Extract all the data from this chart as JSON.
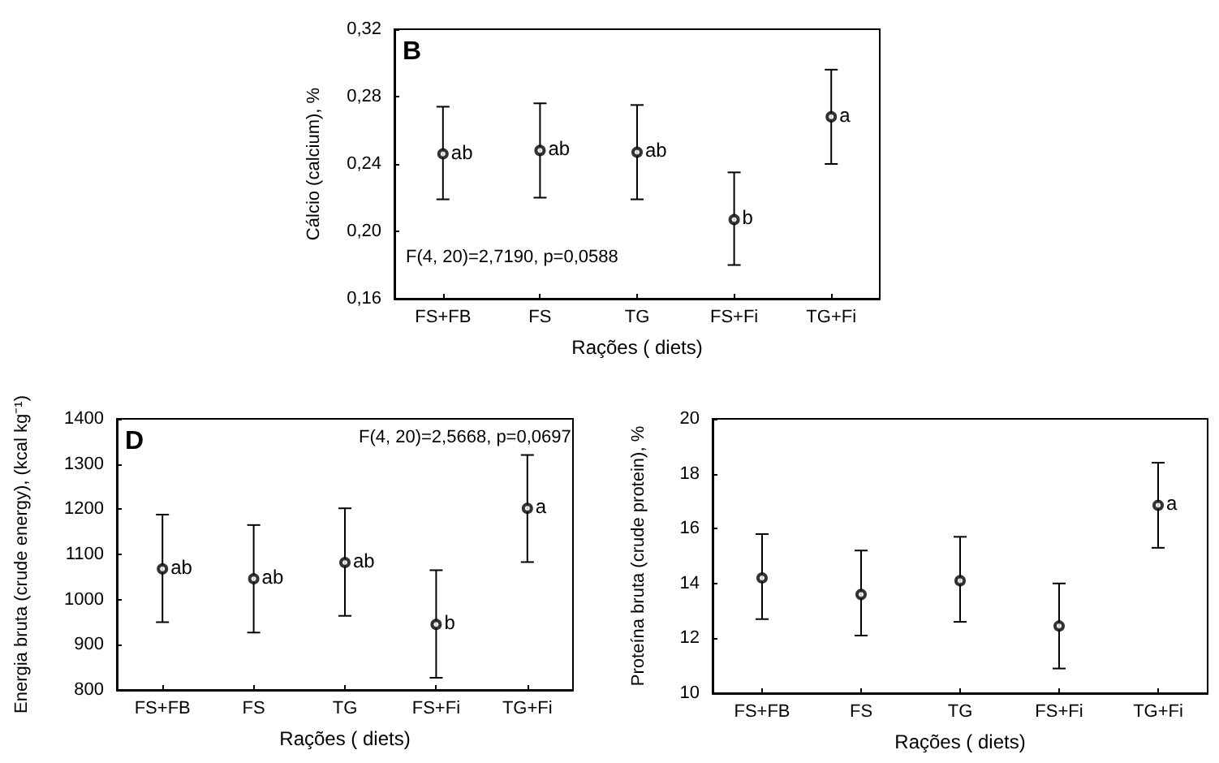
{
  "chart_data": [
    {
      "type": "scatter",
      "title": "B",
      "xlabel": "Rações ( diets)",
      "ylabel": "Cálcio (calcium), %",
      "marker": "circle",
      "categories": [
        "FS+FB",
        "FS",
        "TG",
        "FS+Fi",
        "TG+Fi"
      ],
      "series": [
        {
          "color": "#000000",
          "values": [
            0.246,
            0.248,
            0.247,
            0.207,
            0.268
          ],
          "errors": [
            [
              0.219,
              0.274
            ],
            [
              0.22,
              0.276
            ],
            [
              0.219,
              0.275
            ],
            [
              0.18,
              0.235
            ],
            [
              0.24,
              0.296
            ]
          ]
        }
      ],
      "ylim": [
        0.16,
        0.32
      ],
      "yticks": [
        {
          "value": 0.16,
          "label": "0,16"
        },
        {
          "value": 0.2,
          "label": "0,20"
        },
        {
          "value": 0.24,
          "label": "0,24"
        },
        {
          "value": 0.28,
          "label": "0,28"
        },
        {
          "value": 0.32,
          "label": "0,32"
        }
      ],
      "annotations": [
        "F(4, 20)=2,7190, p=0,0588",
        {
          "text": "ab",
          "x": "FS+FB",
          "y": 0.246
        },
        {
          "text": "ab",
          "x": "FS",
          "y": 0.248
        },
        {
          "text": "ab",
          "x": "TG",
          "y": 0.247
        },
        {
          "text": "b",
          "x": "FS+Fi",
          "y": 0.207
        },
        {
          "text": "a",
          "x": "TG+Fi",
          "y": 0.268
        }
      ]
    },
    {
      "type": "scatter",
      "title": "D",
      "xlabel": "Rações ( diets)",
      "ylabel": "Energia bruta (crude energy), (kcal kg⁻¹)",
      "marker": "circle",
      "categories": [
        "FS+FB",
        "FS",
        "TG",
        "FS+Fi",
        "TG+Fi"
      ],
      "series": [
        {
          "color": "#000000",
          "values": [
            1068,
            1046,
            1082,
            945,
            1202
          ],
          "errors": [
            [
              950,
              1188
            ],
            [
              927,
              1165
            ],
            [
              964,
              1202
            ],
            [
              827,
              1065
            ],
            [
              1083,
              1320
            ]
          ]
        }
      ],
      "ylim": [
        800,
        1400
      ],
      "yticks": [
        800,
        900,
        1000,
        1100,
        1200,
        1300,
        1400
      ],
      "annotations": [
        "F(4, 20)=2,5668, p=0,0697",
        {
          "text": "ab",
          "x": "FS+FB",
          "y": 1068
        },
        {
          "text": "ab",
          "x": "FS",
          "y": 1046
        },
        {
          "text": "ab",
          "x": "TG",
          "y": 1082
        },
        {
          "text": "b",
          "x": "FS+Fi",
          "y": 945
        },
        {
          "text": "a",
          "x": "TG+Fi",
          "y": 1202
        }
      ]
    },
    {
      "type": "scatter",
      "xlabel": "Rações ( diets)",
      "ylabel": "Proteína bruta (crude protein), %",
      "marker": "circle",
      "categories": [
        "FS+FB",
        "FS",
        "TG",
        "FS+Fi",
        "TG+Fi"
      ],
      "series": [
        {
          "color": "#000000",
          "values": [
            14.2,
            13.6,
            14.1,
            12.45,
            16.85
          ],
          "errors": [
            [
              12.7,
              15.8
            ],
            [
              12.1,
              15.2
            ],
            [
              12.6,
              15.7
            ],
            [
              10.9,
              14.0
            ],
            [
              15.3,
              18.4
            ]
          ]
        }
      ],
      "ylim": [
        10,
        20
      ],
      "yticks": [
        10,
        12,
        14,
        16,
        18,
        20
      ],
      "annotations": [
        {
          "text": "a",
          "x": "TG+Fi",
          "y": 16.85
        }
      ]
    }
  ]
}
